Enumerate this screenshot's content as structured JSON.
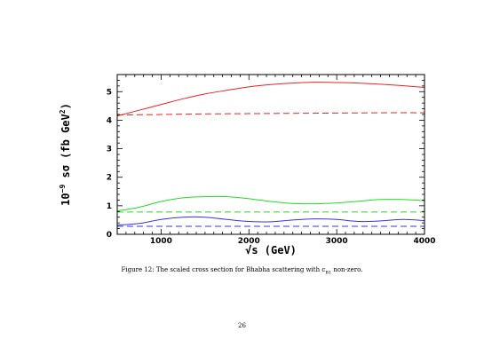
{
  "chart_data": {
    "type": "line",
    "xlabel": "√s (GeV)",
    "ylabel_prefix": "10",
    "ylabel_exp": "−9",
    "ylabel_main": " sσ (fb GeV",
    "ylabel_main_exp": "2",
    "ylabel_close": ")",
    "xlim": [
      500,
      4000
    ],
    "ylim": [
      0,
      5.6
    ],
    "xticks": [
      1000,
      2000,
      3000,
      4000
    ],
    "yticks": [
      0,
      1,
      2,
      3,
      4,
      5
    ],
    "grid": false,
    "series": [
      {
        "color": "#ee2222",
        "style": "solid",
        "x": [
          500,
          750,
          1000,
          1250,
          1500,
          1750,
          2000,
          2250,
          2500,
          2750,
          3000,
          3250,
          3500,
          3750,
          4000
        ],
        "y": [
          4.15,
          4.35,
          4.55,
          4.75,
          4.92,
          5.05,
          5.17,
          5.25,
          5.3,
          5.33,
          5.32,
          5.3,
          5.26,
          5.21,
          5.15
        ]
      },
      {
        "color": "#ee2222",
        "style": "dashed",
        "x": [
          500,
          1000,
          1500,
          2000,
          2500,
          3000,
          3500,
          4000
        ],
        "y": [
          4.18,
          4.2,
          4.22,
          4.23,
          4.24,
          4.25,
          4.26,
          4.26
        ]
      },
      {
        "color": "#22dd22",
        "style": "solid",
        "x": [
          500,
          750,
          1000,
          1250,
          1500,
          1750,
          2000,
          2250,
          2500,
          2750,
          3000,
          3250,
          3500,
          3750,
          4000
        ],
        "y": [
          0.82,
          0.95,
          1.15,
          1.28,
          1.32,
          1.32,
          1.25,
          1.15,
          1.08,
          1.07,
          1.1,
          1.16,
          1.22,
          1.22,
          1.18
        ]
      },
      {
        "color": "#22dd22",
        "style": "dashed",
        "x": [
          500,
          1000,
          1500,
          2000,
          2500,
          3000,
          3500,
          4000
        ],
        "y": [
          0.78,
          0.78,
          0.78,
          0.78,
          0.78,
          0.78,
          0.78,
          0.78
        ]
      },
      {
        "color": "#3333ee",
        "style": "solid",
        "x": [
          500,
          750,
          1000,
          1250,
          1500,
          1750,
          2000,
          2250,
          2500,
          2750,
          3000,
          3250,
          3500,
          3750,
          4000
        ],
        "y": [
          0.32,
          0.38,
          0.52,
          0.6,
          0.6,
          0.52,
          0.45,
          0.44,
          0.5,
          0.54,
          0.52,
          0.45,
          0.47,
          0.52,
          0.48
        ]
      },
      {
        "color": "#3333ee",
        "style": "dashed",
        "x": [
          500,
          1000,
          1500,
          2000,
          2500,
          3000,
          3500,
          4000
        ],
        "y": [
          0.28,
          0.28,
          0.28,
          0.28,
          0.28,
          0.28,
          0.28,
          0.28
        ]
      }
    ]
  },
  "caption": {
    "prefix": "Figure 12: The scaled cross section for Bhabha scattering with c",
    "subscript": "B1",
    "suffix": " non-zero."
  },
  "page_number": "26"
}
